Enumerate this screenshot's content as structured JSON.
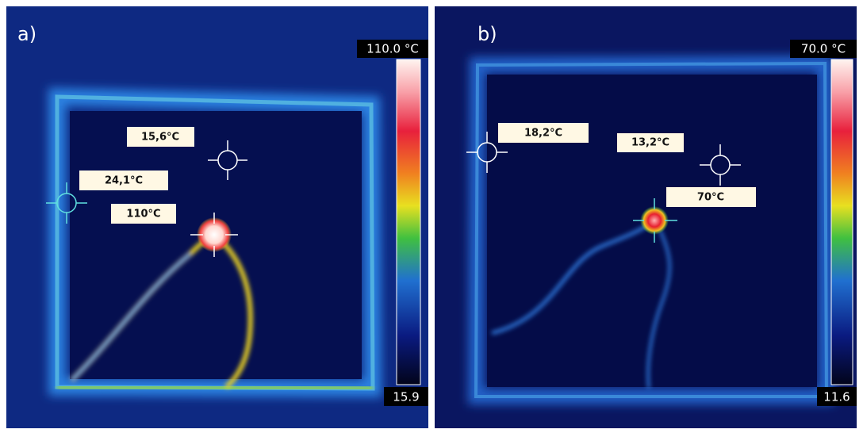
{
  "panels": [
    {
      "label": "a)",
      "scale_max": "110.0 °C",
      "scale_min": "15.9",
      "spots": [
        "15,6°C",
        "24,1°C",
        "110°C"
      ]
    },
    {
      "label": "b)",
      "scale_max": "70.0 °C",
      "scale_min": "11.6",
      "spots": [
        "18,2°C",
        "13,2°C",
        "70°C"
      ]
    }
  ]
}
